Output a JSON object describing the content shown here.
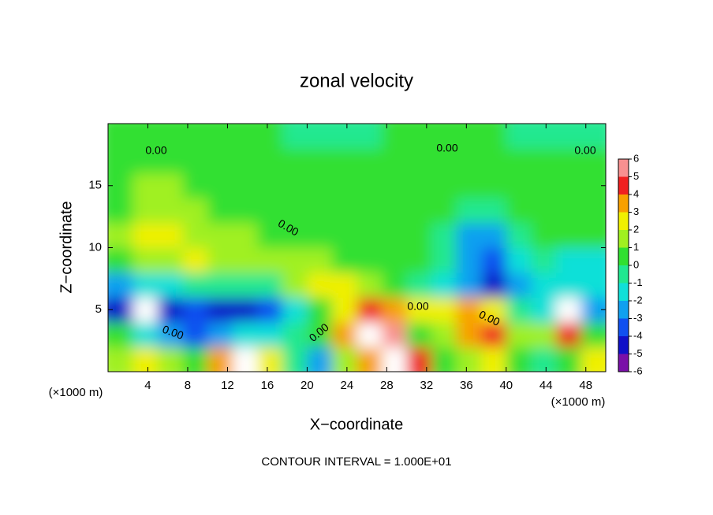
{
  "chart_data": {
    "type": "heatmap",
    "title": "zonal velocity",
    "xlabel": "X−coordinate",
    "ylabel": "Z−coordinate",
    "x_unit_label": "(×1000 m)",
    "y_unit_label": "(×1000 m)",
    "footnote": "CONTOUR INTERVAL = 1.000E+01",
    "contour_label": "0.00",
    "xlim": [
      0,
      50
    ],
    "xticks": [
      4,
      8,
      12,
      16,
      20,
      24,
      28,
      32,
      36,
      40,
      44,
      48
    ],
    "ylim": [
      0,
      20
    ],
    "yticks": [
      5,
      10,
      15
    ],
    "x": [
      1.25,
      3.75,
      6.25,
      8.75,
      11.25,
      13.75,
      16.25,
      18.75,
      21.25,
      23.75,
      26.25,
      28.75,
      31.25,
      33.75,
      36.25,
      38.75,
      41.25,
      43.75,
      46.25,
      48.75
    ],
    "y": [
      1,
      3,
      5,
      7,
      9,
      11,
      13,
      15,
      17,
      19
    ],
    "z": [
      [
        2,
        3,
        2,
        1,
        4,
        6.5,
        3,
        0,
        -2,
        2,
        4,
        7,
        5,
        1,
        2,
        3,
        1,
        0,
        1,
        3
      ],
      [
        1,
        -1,
        -2.5,
        -3,
        -2,
        -1,
        -1.5,
        0,
        1,
        4,
        6.5,
        5.5,
        1,
        2,
        4,
        4.5,
        2,
        2,
        5,
        1
      ],
      [
        -4,
        -6.5,
        -4,
        -3.5,
        -4,
        -4.5,
        -3,
        -1,
        1,
        3,
        4.5,
        3.5,
        2.5,
        3,
        3.5,
        2.5,
        0,
        -1,
        -6.5,
        -2
      ],
      [
        -2,
        -1.5,
        -1,
        -0.5,
        -0.5,
        -0.5,
        -0.5,
        2,
        3,
        2.5,
        2,
        1,
        -0.5,
        -1.5,
        -2,
        -4,
        -2,
        -1,
        -1,
        -1.5
      ],
      [
        0.5,
        1.5,
        2,
        2.5,
        1.5,
        1.2,
        1.5,
        2,
        1.5,
        0.5,
        0.3,
        0.2,
        0.2,
        -0.5,
        -2.5,
        -3.5,
        -1,
        -0.5,
        -1,
        -1
      ],
      [
        1.5,
        2.5,
        3,
        2,
        1.5,
        1.2,
        1,
        1,
        0.8,
        0.5,
        0.3,
        0.3,
        0.2,
        -0.5,
        -2,
        -2,
        0,
        0.5,
        0.5,
        0.5
      ],
      [
        1,
        1.5,
        2,
        1.5,
        1,
        0.8,
        0.8,
        0.6,
        0.5,
        0.5,
        0.4,
        0.5,
        0.5,
        0.2,
        -0.5,
        -0.5,
        0.5,
        0.8,
        0.8,
        0.7
      ],
      [
        1,
        1.2,
        1.3,
        1,
        0.8,
        0.7,
        0.6,
        0.5,
        0.4,
        0.4,
        0.5,
        0.6,
        0.7,
        0.5,
        0.3,
        0.6,
        0.8,
        1,
        1,
        0.8
      ],
      [
        0.8,
        1,
        1,
        0.8,
        0.7,
        0.6,
        0.5,
        0.3,
        0.2,
        0.3,
        0.4,
        0.5,
        0.6,
        0.7,
        0.8,
        0.8,
        0.6,
        0.5,
        0.3,
        0.4
      ],
      [
        0.5,
        0.5,
        0.4,
        0.3,
        0.5,
        0.5,
        0.2,
        -0.5,
        -0.5,
        -0.6,
        -0.5,
        0.2,
        0.4,
        0.5,
        0.5,
        0.3,
        -0.3,
        -0.8,
        -0.8,
        -0.6
      ]
    ],
    "colorbar_ticks": [
      -6,
      -5,
      -4,
      -3,
      -2,
      -1,
      0,
      1,
      2,
      3,
      4,
      5,
      6
    ],
    "colorscale": [
      "#7a10a8",
      "#1010c8",
      "#1050f0",
      "#10a0f0",
      "#10e0d8",
      "#20e890",
      "#30e030",
      "#a0f020",
      "#f0f000",
      "#f8a000",
      "#f02020",
      "#f89090"
    ],
    "out_of_range_color": "#ffffff"
  }
}
